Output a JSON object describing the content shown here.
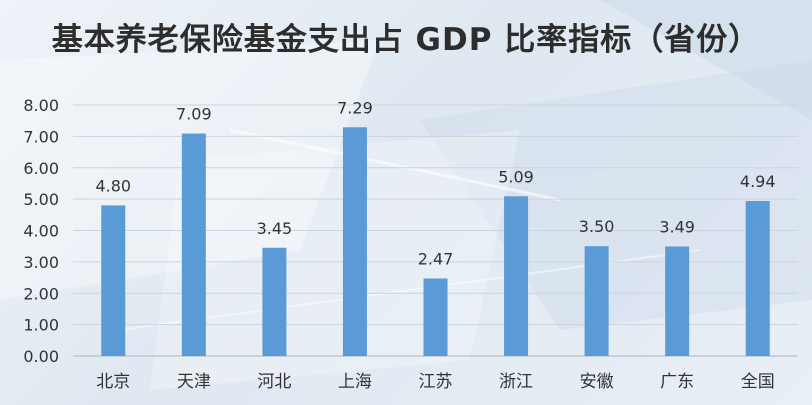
{
  "chart_data": {
    "type": "bar",
    "title": "基本养老保险基金支出占 GDP 比率指标（省份）",
    "xlabel": "",
    "ylabel": "",
    "categories": [
      "北京",
      "天津",
      "河北",
      "上海",
      "江苏",
      "浙江",
      "安徽",
      "广东",
      "全国"
    ],
    "values": [
      4.8,
      7.09,
      3.45,
      7.29,
      2.47,
      5.09,
      3.5,
      3.49,
      4.94
    ],
    "value_labels": [
      "4.80",
      "7.09",
      "3.45",
      "7.29",
      "2.47",
      "5.09",
      "3.50",
      "3.49",
      "4.94"
    ],
    "ylim": [
      0,
      8
    ],
    "yticks": [
      "0.00",
      "1.00",
      "2.00",
      "3.00",
      "4.00",
      "5.00",
      "6.00",
      "7.00",
      "8.00"
    ],
    "grid": true,
    "legend": "none",
    "bar_color": "#5b9bd5"
  }
}
